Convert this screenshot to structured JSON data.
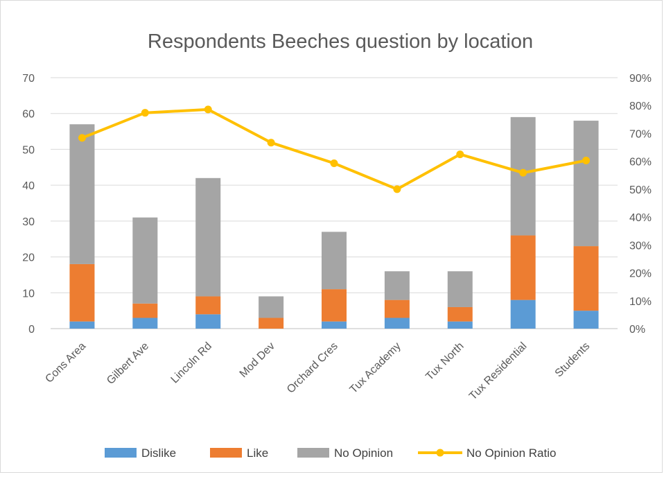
{
  "chart_data": {
    "type": "bar",
    "stacked": true,
    "title": "Respondents Beeches question by location",
    "categories": [
      "Cons Area",
      "Gilbert Ave",
      "Lincoln Rd",
      "Mod Dev",
      "Orchard Cres",
      "Tux Academy",
      "Tux North",
      "Tux Residential",
      "Students"
    ],
    "series": [
      {
        "name": "Dislike",
        "type": "bar",
        "axis": "left",
        "color": "#5b9bd5",
        "values": [
          2,
          3,
          4,
          0,
          2,
          3,
          2,
          8,
          5
        ]
      },
      {
        "name": "Like",
        "type": "bar",
        "axis": "left",
        "color": "#ed7d31",
        "values": [
          16,
          4,
          5,
          3,
          9,
          5,
          4,
          18,
          18
        ]
      },
      {
        "name": "No Opinion",
        "type": "bar",
        "axis": "left",
        "color": "#a5a5a5",
        "values": [
          39,
          24,
          33,
          6,
          16,
          8,
          10,
          33,
          35
        ]
      },
      {
        "name": "No Opinion Ratio",
        "type": "line",
        "axis": "right",
        "color": "#ffc000",
        "values": [
          0.684,
          0.774,
          0.786,
          0.667,
          0.593,
          0.5,
          0.625,
          0.559,
          0.603
        ]
      }
    ],
    "y_left": {
      "min": 0,
      "max": 70,
      "step": 10,
      "ticks": [
        "0",
        "10",
        "20",
        "30",
        "40",
        "50",
        "60",
        "70"
      ]
    },
    "y_right": {
      "min": 0,
      "max": 0.9,
      "step": 0.1,
      "ticks": [
        "0%",
        "10%",
        "20%",
        "30%",
        "40%",
        "50%",
        "60%",
        "70%",
        "80%",
        "90%"
      ]
    },
    "grid": true,
    "legend": "bottom",
    "xlabel": "",
    "ylabel": ""
  }
}
